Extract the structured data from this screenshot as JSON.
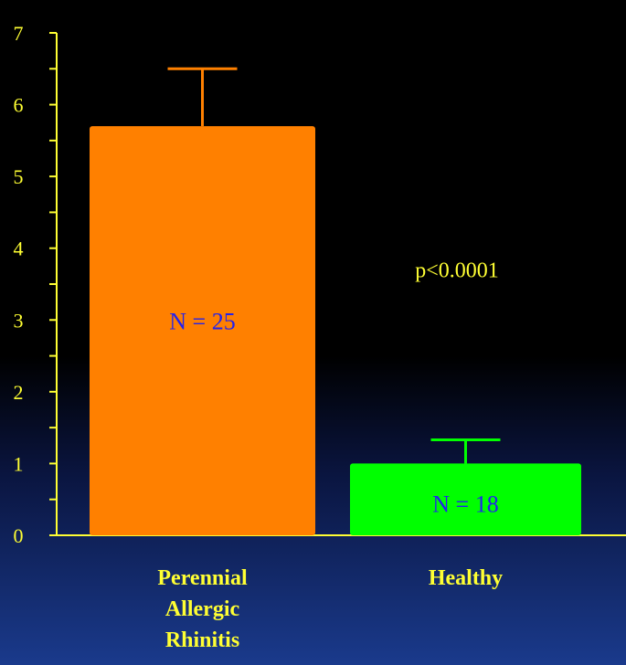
{
  "chart_data": {
    "type": "bar",
    "categories": [
      {
        "lines": [
          "Perennial",
          "Allergic",
          "Rhinitis"
        ]
      },
      {
        "lines": [
          "Healthy"
        ]
      }
    ],
    "values": [
      5.7,
      1.0
    ],
    "error_upper": [
      6.5,
      1.33
    ],
    "bar_labels": [
      "N = 25",
      "N = 18"
    ],
    "colors": [
      "#ff8000",
      "#00ff00"
    ],
    "axis_color": "#ffff33",
    "ylim": [
      0,
      7
    ],
    "yticks": [
      "0",
      "1",
      "2",
      "3",
      "4",
      "5",
      "6",
      "7"
    ],
    "minor_ticks_per_unit": 2,
    "annotation": "p<0.0001",
    "annotation_y": 3.7,
    "title": "",
    "xlabel": "",
    "ylabel": ""
  }
}
